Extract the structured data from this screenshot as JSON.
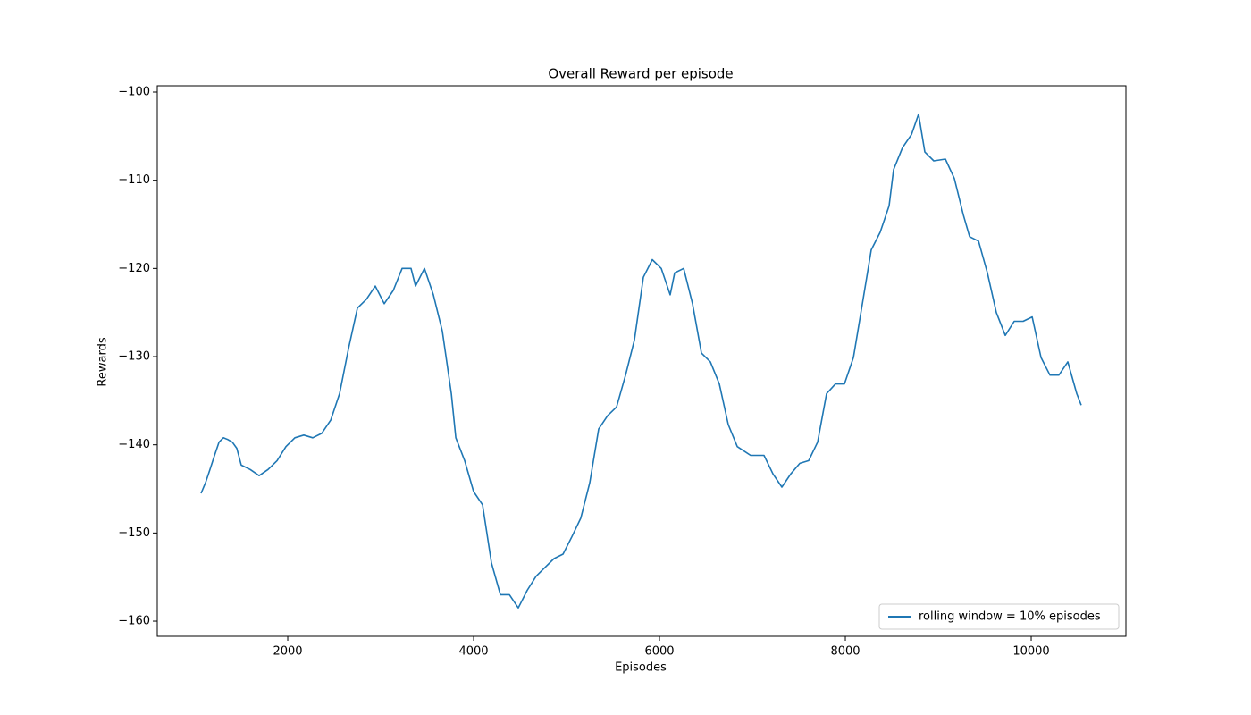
{
  "chart_data": {
    "type": "line",
    "title": "Overall Reward per episode",
    "x_label": "Episodes",
    "y_label": "Rewards",
    "legend_position": "lower right",
    "xlim": [
      596,
      11019
    ],
    "ylim": [
      -161.72,
      -99.29
    ],
    "xticks": [
      2000,
      4000,
      6000,
      8000,
      10000
    ],
    "yticks": [
      {
        "value": -160,
        "label": "−160"
      },
      {
        "value": -150,
        "label": "−150"
      },
      {
        "value": -140,
        "label": "−140"
      },
      {
        "value": -130,
        "label": "−130"
      },
      {
        "value": -120,
        "label": "−120"
      },
      {
        "value": -110,
        "label": "−110"
      },
      {
        "value": -100,
        "label": "−100"
      }
    ],
    "grid": false,
    "x": [
      1067,
      1115,
      1163,
      1212,
      1260,
      1308,
      1356,
      1404,
      1452,
      1500,
      1596,
      1692,
      1788,
      1885,
      1981,
      2077,
      2173,
      2269,
      2365,
      2462,
      2558,
      2654,
      2750,
      2846,
      2942,
      3038,
      3135,
      3231,
      3327,
      3375,
      3471,
      3567,
      3663,
      3760,
      3808,
      3904,
      4000,
      4096,
      4192,
      4288,
      4385,
      4481,
      4577,
      4673,
      4769,
      4865,
      4962,
      5058,
      5154,
      5250,
      5346,
      5442,
      5538,
      5635,
      5731,
      5827,
      5923,
      6019,
      6115,
      6163,
      6260,
      6356,
      6452,
      6548,
      6644,
      6740,
      6837,
      6981,
      7125,
      7221,
      7317,
      7413,
      7510,
      7606,
      7702,
      7798,
      7894,
      7990,
      8087,
      8183,
      8279,
      8375,
      8471,
      8519,
      8615,
      8712,
      8788,
      8856,
      8952,
      9077,
      9173,
      9269,
      9337,
      9433,
      9529,
      9625,
      9721,
      9817,
      9913,
      10010,
      10106,
      10202,
      10298,
      10394,
      10490,
      10538
    ],
    "series": [
      {
        "name": "rolling window = 10% episodes",
        "color": "#1f77b4",
        "values": [
          -145.5,
          -144.3,
          -142.8,
          -141.2,
          -139.7,
          -139.2,
          -139.4,
          -139.7,
          -140.4,
          -142.3,
          -142.8,
          -143.5,
          -142.8,
          -141.8,
          -140.2,
          -139.2,
          -138.9,
          -139.2,
          -138.7,
          -137.2,
          -134.2,
          -129.1,
          -124.5,
          -123.5,
          -122.0,
          -124.0,
          -122.5,
          -120.0,
          -120.0,
          -122.0,
          -120.0,
          -123.0,
          -127.1,
          -134.2,
          -139.2,
          -141.8,
          -145.3,
          -146.8,
          -153.4,
          -157.0,
          -157.0,
          -158.5,
          -156.5,
          -154.9,
          -153.9,
          -152.9,
          -152.4,
          -150.4,
          -148.3,
          -144.3,
          -138.2,
          -136.7,
          -135.7,
          -132.1,
          -128.1,
          -121.0,
          -119.0,
          -120.0,
          -123.0,
          -120.5,
          -120.0,
          -124.0,
          -129.6,
          -130.6,
          -133.1,
          -137.7,
          -140.2,
          -141.2,
          -141.2,
          -143.3,
          -144.8,
          -143.3,
          -142.1,
          -141.8,
          -139.7,
          -134.2,
          -133.1,
          -133.1,
          -130.1,
          -124.0,
          -117.9,
          -115.9,
          -112.9,
          -108.8,
          -106.3,
          -104.8,
          -102.5,
          -106.8,
          -107.8,
          -107.6,
          -109.8,
          -113.9,
          -116.4,
          -116.9,
          -120.5,
          -125.0,
          -127.6,
          -126.0,
          -126.0,
          -125.5,
          -130.1,
          -132.1,
          -132.1,
          -130.6,
          -134.2,
          -135.5
        ]
      }
    ]
  }
}
